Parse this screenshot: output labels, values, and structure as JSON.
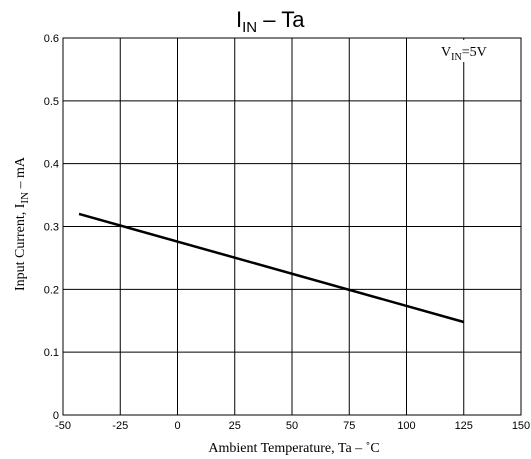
{
  "chart_data": {
    "type": "line",
    "title": {
      "main": "I",
      "subscript": "IN",
      "rest": " –  Ta"
    },
    "condition": {
      "prefix": "V",
      "subscript": "IN",
      "suffix": "=5V"
    },
    "xlabel": "Ambient Temperature, Ta  –  ˚C",
    "ylabel": {
      "prefix": "Input Current, I",
      "subscript": "IN",
      "suffix": "  –  mA"
    },
    "xlim": [
      -50,
      150
    ],
    "ylim": [
      0,
      0.6
    ],
    "x_ticks": [
      -50,
      -25,
      0,
      25,
      50,
      75,
      100,
      125,
      150
    ],
    "y_ticks": [
      0,
      0.1,
      0.2,
      0.3,
      0.4,
      0.5,
      0.6
    ],
    "x_tick_labels": [
      "-50",
      "-25",
      "0",
      "25",
      "50",
      "75",
      "100",
      "125",
      "150"
    ],
    "y_tick_labels": [
      "0",
      "0.1",
      "0.2",
      "0.3",
      "0.4",
      "0.5",
      "0.6"
    ],
    "grid": true,
    "series": [
      {
        "x": [
          -43,
          125
        ],
        "y": [
          0.32,
          0.148
        ],
        "color": "#000000"
      }
    ]
  }
}
